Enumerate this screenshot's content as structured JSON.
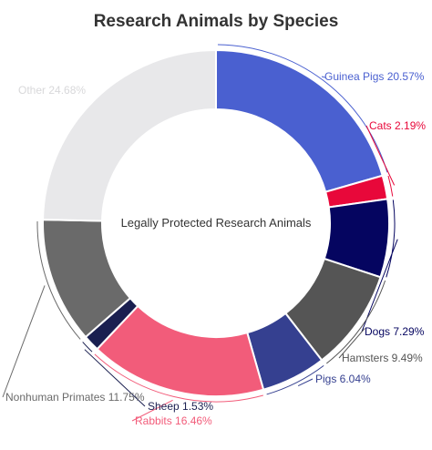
{
  "chart_data": {
    "type": "pie",
    "title": "Research Animals by Species",
    "center_label": "Legally Protected Research Animals",
    "slices": [
      {
        "label": "Guinea Pigs",
        "percent_text": "20.57%",
        "value": 20.57,
        "color": "#4a60d0"
      },
      {
        "label": "Cats",
        "percent_text": "2.19%",
        "value": 2.19,
        "color": "#e8083a"
      },
      {
        "label": "Dogs",
        "percent_text": "7.29%",
        "value": 7.29,
        "color": "#050560"
      },
      {
        "label": "Hamsters",
        "percent_text": "9.49%",
        "value": 9.49,
        "color": "#555555"
      },
      {
        "label": "Pigs",
        "percent_text": "6.04%",
        "value": 6.04,
        "color": "#354090"
      },
      {
        "label": "Rabbits",
        "percent_text": "16.46%",
        "value": 16.46,
        "color": "#f25c7a"
      },
      {
        "label": "Sheep",
        "percent_text": "1.53%",
        "value": 1.53,
        "color": "#1a1f50"
      },
      {
        "label": "Nonhuman Primates",
        "percent_text": "11.75%",
        "value": 11.75,
        "color": "#6a6a6a"
      },
      {
        "label": "Other",
        "percent_text": "24.68%",
        "value": 24.68,
        "color": "#e8e8ea"
      }
    ],
    "label_colors": {
      "Guinea Pigs": "#4a60d0",
      "Cats": "#e8083a",
      "Dogs": "#050560",
      "Hamsters": "#555555",
      "Pigs": "#354090",
      "Rabbits": "#f25c7a",
      "Sheep": "#1a1f50",
      "Nonhuman Primates": "#6a6a6a",
      "Other": "#d8d8da"
    }
  }
}
